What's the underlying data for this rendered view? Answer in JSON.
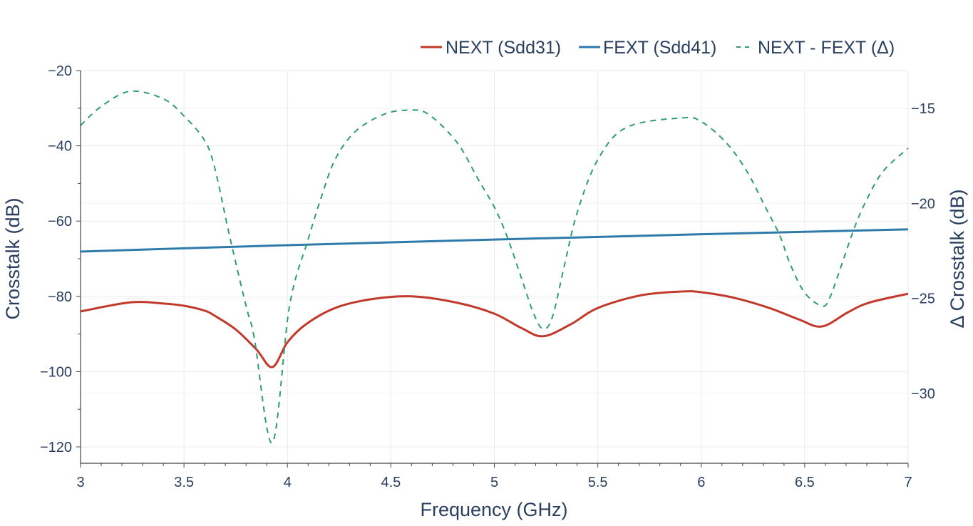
{
  "chart_data": {
    "type": "line",
    "title": "",
    "xlabel": "Frequency (GHz)",
    "ylabel": "Crosstalk (dB)",
    "y2label": "Δ Crosstalk (dB)",
    "xlim": [
      3,
      7
    ],
    "ylim": [
      -125,
      -20
    ],
    "y2lim": [
      -33.65,
      -13.2
    ],
    "x_ticks": [
      3,
      3.5,
      4,
      4.5,
      5,
      5.5,
      6,
      6.5,
      7
    ],
    "x_tick_labels": [
      "3",
      "3.5",
      "4",
      "4.5",
      "5",
      "5.5",
      "6",
      "6.5",
      "7"
    ],
    "y_ticks": [
      -20,
      -40,
      -60,
      -80,
      -100,
      -120
    ],
    "y_tick_labels": [
      "−20",
      "−40",
      "−60",
      "−80",
      "−100",
      "−120"
    ],
    "y2_ticks": [
      -15,
      -20,
      -25,
      -30
    ],
    "y2_tick_labels": [
      "−15",
      "−20",
      "−25",
      "−30"
    ],
    "grid": true,
    "legend_position": "top-right",
    "series": [
      {
        "name": "NEXT (Sdd31)",
        "axis": "y",
        "color": "#c0392b",
        "dash": "solid",
        "x": [
          3.0,
          3.24,
          3.4,
          3.5,
          3.6,
          3.65,
          3.75,
          3.85,
          3.927,
          4.0,
          4.09,
          4.23,
          4.4,
          4.6,
          4.82,
          5.0,
          5.13,
          5.236,
          5.37,
          5.5,
          5.71,
          5.908,
          6.0,
          6.16,
          6.33,
          6.47,
          6.583,
          6.71,
          6.81,
          7.0
        ],
        "values": [
          -84.0,
          -81.6,
          -81.9,
          -82.5,
          -83.8,
          -85.2,
          -88.8,
          -94.1,
          -98.8,
          -92.2,
          -87.4,
          -83.1,
          -80.8,
          -80.0,
          -81.7,
          -84.6,
          -88.4,
          -90.6,
          -87.4,
          -83.1,
          -79.7,
          -78.7,
          -78.9,
          -80.4,
          -83.1,
          -86.1,
          -88.0,
          -84.2,
          -81.7,
          -79.3
        ]
      },
      {
        "name": "FEXT (Sdd41)",
        "axis": "y",
        "color": "#2e7bab",
        "dash": "solid",
        "x": [
          3.0,
          4.0,
          5.0,
          6.0,
          7.0
        ],
        "values": [
          -68.1,
          -66.4,
          -64.9,
          -63.5,
          -62.2
        ]
      },
      {
        "name": "NEXT - FEXT (Δ)",
        "axis": "y2",
        "color": "#2e9e6b",
        "dash": "dash",
        "x": [
          3.0,
          3.1,
          3.24,
          3.4,
          3.5,
          3.6,
          3.65,
          3.72,
          3.8,
          3.84,
          3.927,
          4.01,
          4.1,
          4.16,
          4.23,
          4.33,
          4.47,
          4.585,
          4.68,
          4.82,
          4.92,
          5.0,
          5.06,
          5.13,
          5.19,
          5.235,
          5.28,
          5.34,
          5.4,
          5.5,
          5.64,
          5.908,
          6.0,
          6.12,
          6.22,
          6.31,
          6.38,
          6.43,
          6.5,
          6.583,
          6.62,
          6.67,
          6.74,
          6.8,
          6.88,
          7.0
        ],
        "values": [
          -15.9,
          -14.9,
          -14.1,
          -14.5,
          -15.4,
          -16.7,
          -18.2,
          -21.7,
          -25.4,
          -27.1,
          -32.6,
          -25.4,
          -21.9,
          -19.8,
          -17.7,
          -16.2,
          -15.3,
          -15.1,
          -15.3,
          -16.8,
          -18.7,
          -20.2,
          -21.7,
          -23.9,
          -25.8,
          -26.6,
          -26.0,
          -23.2,
          -20.5,
          -17.7,
          -16.0,
          -15.5,
          -15.7,
          -16.8,
          -18.3,
          -20.2,
          -21.7,
          -23.2,
          -24.7,
          -25.4,
          -25.0,
          -23.5,
          -21.3,
          -19.8,
          -18.3,
          -17.1
        ]
      }
    ]
  },
  "legend": {
    "items": [
      {
        "label": "NEXT (Sdd31)",
        "color": "#c0392b",
        "dash": "solid"
      },
      {
        "label": "FEXT (Sdd41)",
        "color": "#2e7bab",
        "dash": "solid"
      },
      {
        "label": "NEXT - FEXT (Δ)",
        "color": "#2e9e6b",
        "dash": "dash"
      }
    ]
  },
  "axes": {
    "x_title": "Frequency (GHz)",
    "y_title": "Crosstalk (dB)",
    "y2_title": "Δ Crosstalk (dB)"
  },
  "colors": {
    "text": "#2a3f5f",
    "grid": "#ebebeb",
    "axis_line": "#444444"
  }
}
